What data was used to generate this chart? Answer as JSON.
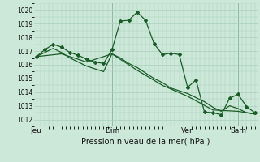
{
  "title": "Pression niveau de la mer( hPa )",
  "background_color": "#cce8d8",
  "grid_color": "#aacfbc",
  "line_color": "#1a5c28",
  "ylim": [
    1011.5,
    1020.5
  ],
  "ylabel_ticks": [
    1012,
    1013,
    1014,
    1015,
    1016,
    1017,
    1018,
    1019,
    1020
  ],
  "day_labels": [
    "Jeu",
    "Dim",
    "Ven",
    "Sam"
  ],
  "day_positions": [
    0,
    9,
    18,
    24
  ],
  "series1_x": [
    0,
    1,
    2,
    3,
    4,
    5,
    6,
    7,
    8,
    9,
    10,
    11,
    12,
    13,
    14,
    15,
    16,
    17,
    18,
    19,
    20,
    21,
    22,
    23,
    24,
    25,
    26
  ],
  "series1_y": [
    1016.6,
    1017.1,
    1017.5,
    1017.3,
    1016.9,
    1016.7,
    1016.4,
    1016.2,
    1016.1,
    1017.1,
    1019.2,
    1019.25,
    1019.85,
    1019.25,
    1017.55,
    1016.75,
    1016.85,
    1016.75,
    1014.35,
    1014.9,
    1012.55,
    1012.5,
    1012.35,
    1013.55,
    1013.85,
    1012.95,
    1012.5
  ],
  "series2_x": [
    0,
    1,
    2,
    3,
    4,
    5,
    6,
    7,
    8,
    9,
    10,
    11,
    12,
    13,
    14,
    15,
    16,
    17,
    18,
    19,
    20,
    21,
    22,
    23,
    24,
    25,
    26
  ],
  "series2_y": [
    1016.6,
    1016.9,
    1017.2,
    1016.9,
    1016.5,
    1016.2,
    1015.9,
    1015.7,
    1015.5,
    1016.8,
    1016.5,
    1016.1,
    1015.8,
    1015.4,
    1015.0,
    1014.7,
    1014.3,
    1014.1,
    1013.9,
    1013.6,
    1013.3,
    1012.9,
    1012.6,
    1013.0,
    1012.8,
    1012.5,
    1012.4
  ],
  "series3_x": [
    0,
    3,
    6,
    9,
    12,
    15,
    18,
    21,
    24,
    26
  ],
  "series3_y": [
    1016.6,
    1016.8,
    1016.2,
    1016.8,
    1015.6,
    1014.5,
    1013.7,
    1012.7,
    1012.6,
    1012.4
  ]
}
